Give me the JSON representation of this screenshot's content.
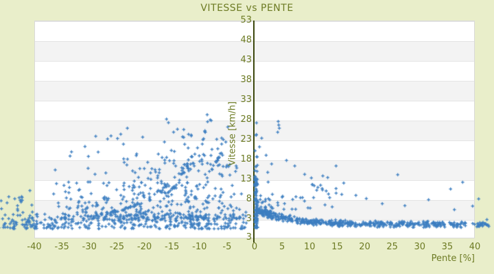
{
  "header": {
    "title": "VITESSE vs PENTE"
  },
  "colors": {
    "background": "#e9eeca",
    "band_light": "#ffffff",
    "band_dark": "#f3f3f3",
    "grid_line": "#e4e4e4",
    "plot_border": "#d9d9d9",
    "text_olive": "#6d7b24",
    "axis_line": "#3c470d",
    "point_blue": "#3d7ec1"
  },
  "chart_data": {
    "type": "scatter",
    "title": "VITESSE vs PENTE",
    "xlabel": "Pente [%]",
    "ylabel": "Vitesse [km/h]",
    "xlim": [
      -40,
      40
    ],
    "ylim": [
      -1.7,
      53
    ],
    "x_ticks": [
      -40,
      -35,
      -30,
      -25,
      -20,
      -15,
      -10,
      -5,
      0,
      5,
      10,
      15,
      20,
      25,
      30,
      35,
      40
    ],
    "y_ticks": [
      53,
      48,
      43,
      38,
      33,
      28,
      23,
      18,
      13,
      8,
      3
    ],
    "y_axis_bottom_label": "3",
    "grid": "horizontal-bands",
    "legend": "none",
    "y_axis_position_x": 0,
    "marker": "plus",
    "marker_size_px": 4.6,
    "marker_color": "#3d7ec1",
    "seed": 7,
    "clusters": [
      {
        "kind": "box",
        "n": 40,
        "x": [
          -46.5,
          -40.2
        ],
        "y": [
          0.8,
          9.0
        ],
        "ybias": 2.0
      },
      {
        "kind": "box",
        "n": 330,
        "x": [
          -44.0,
          -1.5
        ],
        "y": [
          0.6,
          4.3
        ],
        "ybias": 1.5
      },
      {
        "kind": "box",
        "n": 110,
        "x": [
          -36.5,
          -20.0
        ],
        "y": [
          3.0,
          12.5
        ],
        "ybias": 2.0
      },
      {
        "kind": "box",
        "n": 150,
        "x": [
          -24.0,
          -8.0
        ],
        "y": [
          3.0,
          20.0
        ],
        "ybias": 2.1
      },
      {
        "kind": "box",
        "n": 90,
        "x": [
          -12.0,
          -1.5
        ],
        "y": [
          3.0,
          17.0
        ],
        "ybias": 1.8
      },
      {
        "kind": "box",
        "n": 45,
        "x": [
          -17.0,
          -3.0
        ],
        "y": [
          15.0,
          28.2
        ],
        "ybias": 1.3
      },
      {
        "kind": "box",
        "n": 25,
        "x": [
          -34.0,
          -15.0
        ],
        "y": [
          12.0,
          24.0
        ],
        "ybias": 1.4
      },
      {
        "kind": "arc",
        "n": 45,
        "p0": [
          -27.0,
          4.5
        ],
        "p1": [
          -14.0,
          7.5
        ],
        "p2": [
          -7.6,
          28.6
        ],
        "jitter": 0.25
      },
      {
        "kind": "arc",
        "n": 32,
        "p0": [
          -31.5,
          3.6
        ],
        "p1": [
          -22.0,
          4.8
        ],
        "p2": [
          -13.0,
          12.0
        ],
        "jitter": 0.2
      },
      {
        "kind": "arc",
        "n": 28,
        "p0": [
          -21.0,
          4.2
        ],
        "p1": [
          -15.5,
          6.5
        ],
        "p2": [
          -11.3,
          19.0
        ],
        "jitter": 0.2
      },
      {
        "kind": "arc",
        "n": 12,
        "p0": [
          -8.2,
          14.8
        ],
        "p1": [
          -7.2,
          16.8
        ],
        "p2": [
          -6.1,
          19.6
        ],
        "jitter": 0.12
      },
      {
        "kind": "box",
        "n": 70,
        "x": [
          0.07,
          0.55
        ],
        "y": [
          2.2,
          14.0
        ],
        "ybias": 1.2
      },
      {
        "kind": "box",
        "n": 45,
        "x": [
          0.07,
          0.55
        ],
        "y": [
          0.9,
          28.4
        ],
        "ybias": 2.2
      },
      {
        "kind": "decay",
        "n": 530,
        "x": [
          0.4,
          42.8
        ],
        "xbias": 1.35,
        "base": 1.7,
        "amp": 3.8,
        "rate": 5.5,
        "noise": 0.45,
        "tail": 3.2,
        "tailrate": 4.5
      },
      {
        "kind": "box",
        "n": 30,
        "x": [
          1.0,
          16.0
        ],
        "y": [
          5.5,
          13.5
        ],
        "ybias": 1.4
      },
      {
        "kind": "arc",
        "n": 9,
        "p0": [
          10.2,
          11.8
        ],
        "p1": [
          12.6,
          10.3
        ],
        "p2": [
          15.8,
          9.1
        ],
        "jitter": 0.15
      },
      {
        "kind": "box",
        "n": 14,
        "x": [
          0.6,
          3.2
        ],
        "y": [
          4.5,
          8.5
        ],
        "ybias": 1.3
      }
    ],
    "outlier_points": [
      [
        -26.7,
        23.2
      ],
      [
        -24.3,
        24.4
      ],
      [
        -23.1,
        25.9
      ],
      [
        -8.6,
        29.3
      ],
      [
        -30.8,
        21.3
      ],
      [
        -36.2,
        15.4
      ],
      [
        -40.8,
        10.2
      ],
      [
        -42.3,
        8.7
      ],
      [
        -33.5,
        18.9
      ],
      [
        -28.4,
        19.9
      ],
      [
        4.3,
        27.6
      ],
      [
        4.4,
        26.7
      ],
      [
        4.5,
        25.9
      ],
      [
        4.2,
        24.9
      ],
      [
        1.3,
        23.4
      ],
      [
        0.9,
        21.2
      ],
      [
        2.1,
        19.1
      ],
      [
        7.3,
        16.4
      ],
      [
        14.8,
        16.4
      ],
      [
        26.0,
        14.2
      ],
      [
        37.8,
        12.3
      ],
      [
        35.6,
        10.6
      ],
      [
        27.3,
        6.4
      ],
      [
        36.3,
        5.4
      ],
      [
        14.1,
        6.1
      ],
      [
        10.1,
        5.8
      ],
      [
        20.3,
        8.2
      ],
      [
        31.6,
        7.9
      ],
      [
        40.7,
        8.1
      ],
      [
        23.2,
        6.9
      ],
      [
        18.4,
        9.0
      ],
      [
        12.4,
        13.9
      ],
      [
        16.2,
        12.1
      ],
      [
        9.1,
        14.3
      ],
      [
        5.8,
        17.8
      ],
      [
        3.1,
        16.9
      ],
      [
        2.4,
        14.8
      ],
      [
        39.6,
        6.3
      ],
      [
        42.2,
        2.9
      ],
      [
        41.5,
        2.2
      ]
    ]
  }
}
